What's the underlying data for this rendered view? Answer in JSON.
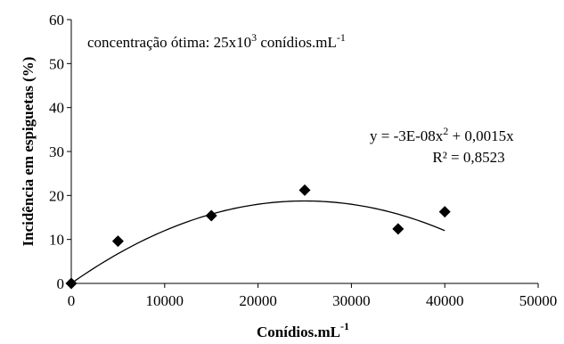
{
  "chart_data": {
    "type": "scatter",
    "title": "",
    "xlabel": "Conídios.mL",
    "xlabel_sup": "-1",
    "ylabel": "Incidência  em espiguetas (%)",
    "xlim": [
      0,
      50000
    ],
    "ylim": [
      0,
      60
    ],
    "x_ticks": [
      0,
      10000,
      20000,
      30000,
      40000,
      50000
    ],
    "y_ticks": [
      0,
      10,
      20,
      30,
      40,
      50,
      60
    ],
    "x_tick_labels": [
      "0",
      "10000",
      "20000",
      "30000",
      "40000",
      "50000"
    ],
    "y_tick_labels": [
      "0",
      "10",
      "20",
      "30",
      "40",
      "50",
      "60"
    ],
    "grid": false,
    "points": {
      "x": [
        0,
        5000,
        15000,
        25000,
        35000,
        40000
      ],
      "y": [
        0,
        9.6,
        15.4,
        21.2,
        12.4,
        16.3
      ]
    },
    "trendline": {
      "type": "polynomial",
      "coefficients": {
        "a": -3e-08,
        "b": 0.0015,
        "c": 0
      },
      "x_range": [
        0,
        40000
      ]
    },
    "annotations": {
      "optimal_prefix": "concentração  ótima:  25x10",
      "optimal_exp": "3",
      "optimal_unit": " conídios.mL",
      "optimal_unit_exp": "-1",
      "equation_line1_a": "y = -3E-08x",
      "equation_line1_exp": "2",
      "equation_line1_b": " + 0,0015x",
      "equation_line2": "R² = 0,8523"
    }
  }
}
